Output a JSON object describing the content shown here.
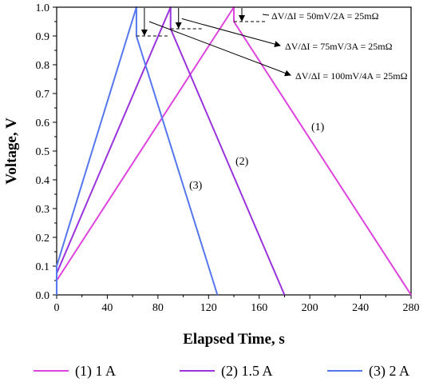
{
  "chart_data": {
    "type": "line",
    "title": "",
    "xlabel": "Elapsed Time, s",
    "ylabel": "Voltage, V",
    "xlim": [
      0,
      280
    ],
    "ylim": [
      0.0,
      1.0
    ],
    "xticks": [
      "0",
      "40",
      "80",
      "120",
      "160",
      "200",
      "240",
      "280"
    ],
    "yticks": [
      "0.0",
      "0.1",
      "0.2",
      "0.3",
      "0.4",
      "0.5",
      "0.6",
      "0.7",
      "0.8",
      "0.9",
      "1.0"
    ],
    "grid": false,
    "legend_position": "bottom",
    "series": [
      {
        "name": "(1) 1 A",
        "label": "(1)",
        "color": "#dd44dd",
        "points": [
          [
            0,
            0.0
          ],
          [
            0,
            0.05
          ],
          [
            140,
            1.0
          ],
          [
            140,
            0.95
          ],
          [
            280,
            0.0
          ]
        ]
      },
      {
        "name": "(2) 1.5 A",
        "label": "(2)",
        "color": "#9933dd",
        "points": [
          [
            0,
            0.0
          ],
          [
            0,
            0.075
          ],
          [
            90,
            1.0
          ],
          [
            90,
            0.925
          ],
          [
            180,
            0.0
          ]
        ]
      },
      {
        "name": "(3) 2 A",
        "label": "(3)",
        "color": "#5577ee",
        "points": [
          [
            0,
            0.0
          ],
          [
            0,
            0.1
          ],
          [
            63,
            1.0
          ],
          [
            63,
            0.9
          ],
          [
            127,
            0.0
          ]
        ]
      }
    ],
    "annotations": [
      "ΔV/ΔI = 50mV/2A = 25mΩ",
      "ΔV/ΔI = 75mV/3A = 25mΩ",
      "ΔV/ΔI = 100mV/4A = 25mΩ"
    ]
  }
}
